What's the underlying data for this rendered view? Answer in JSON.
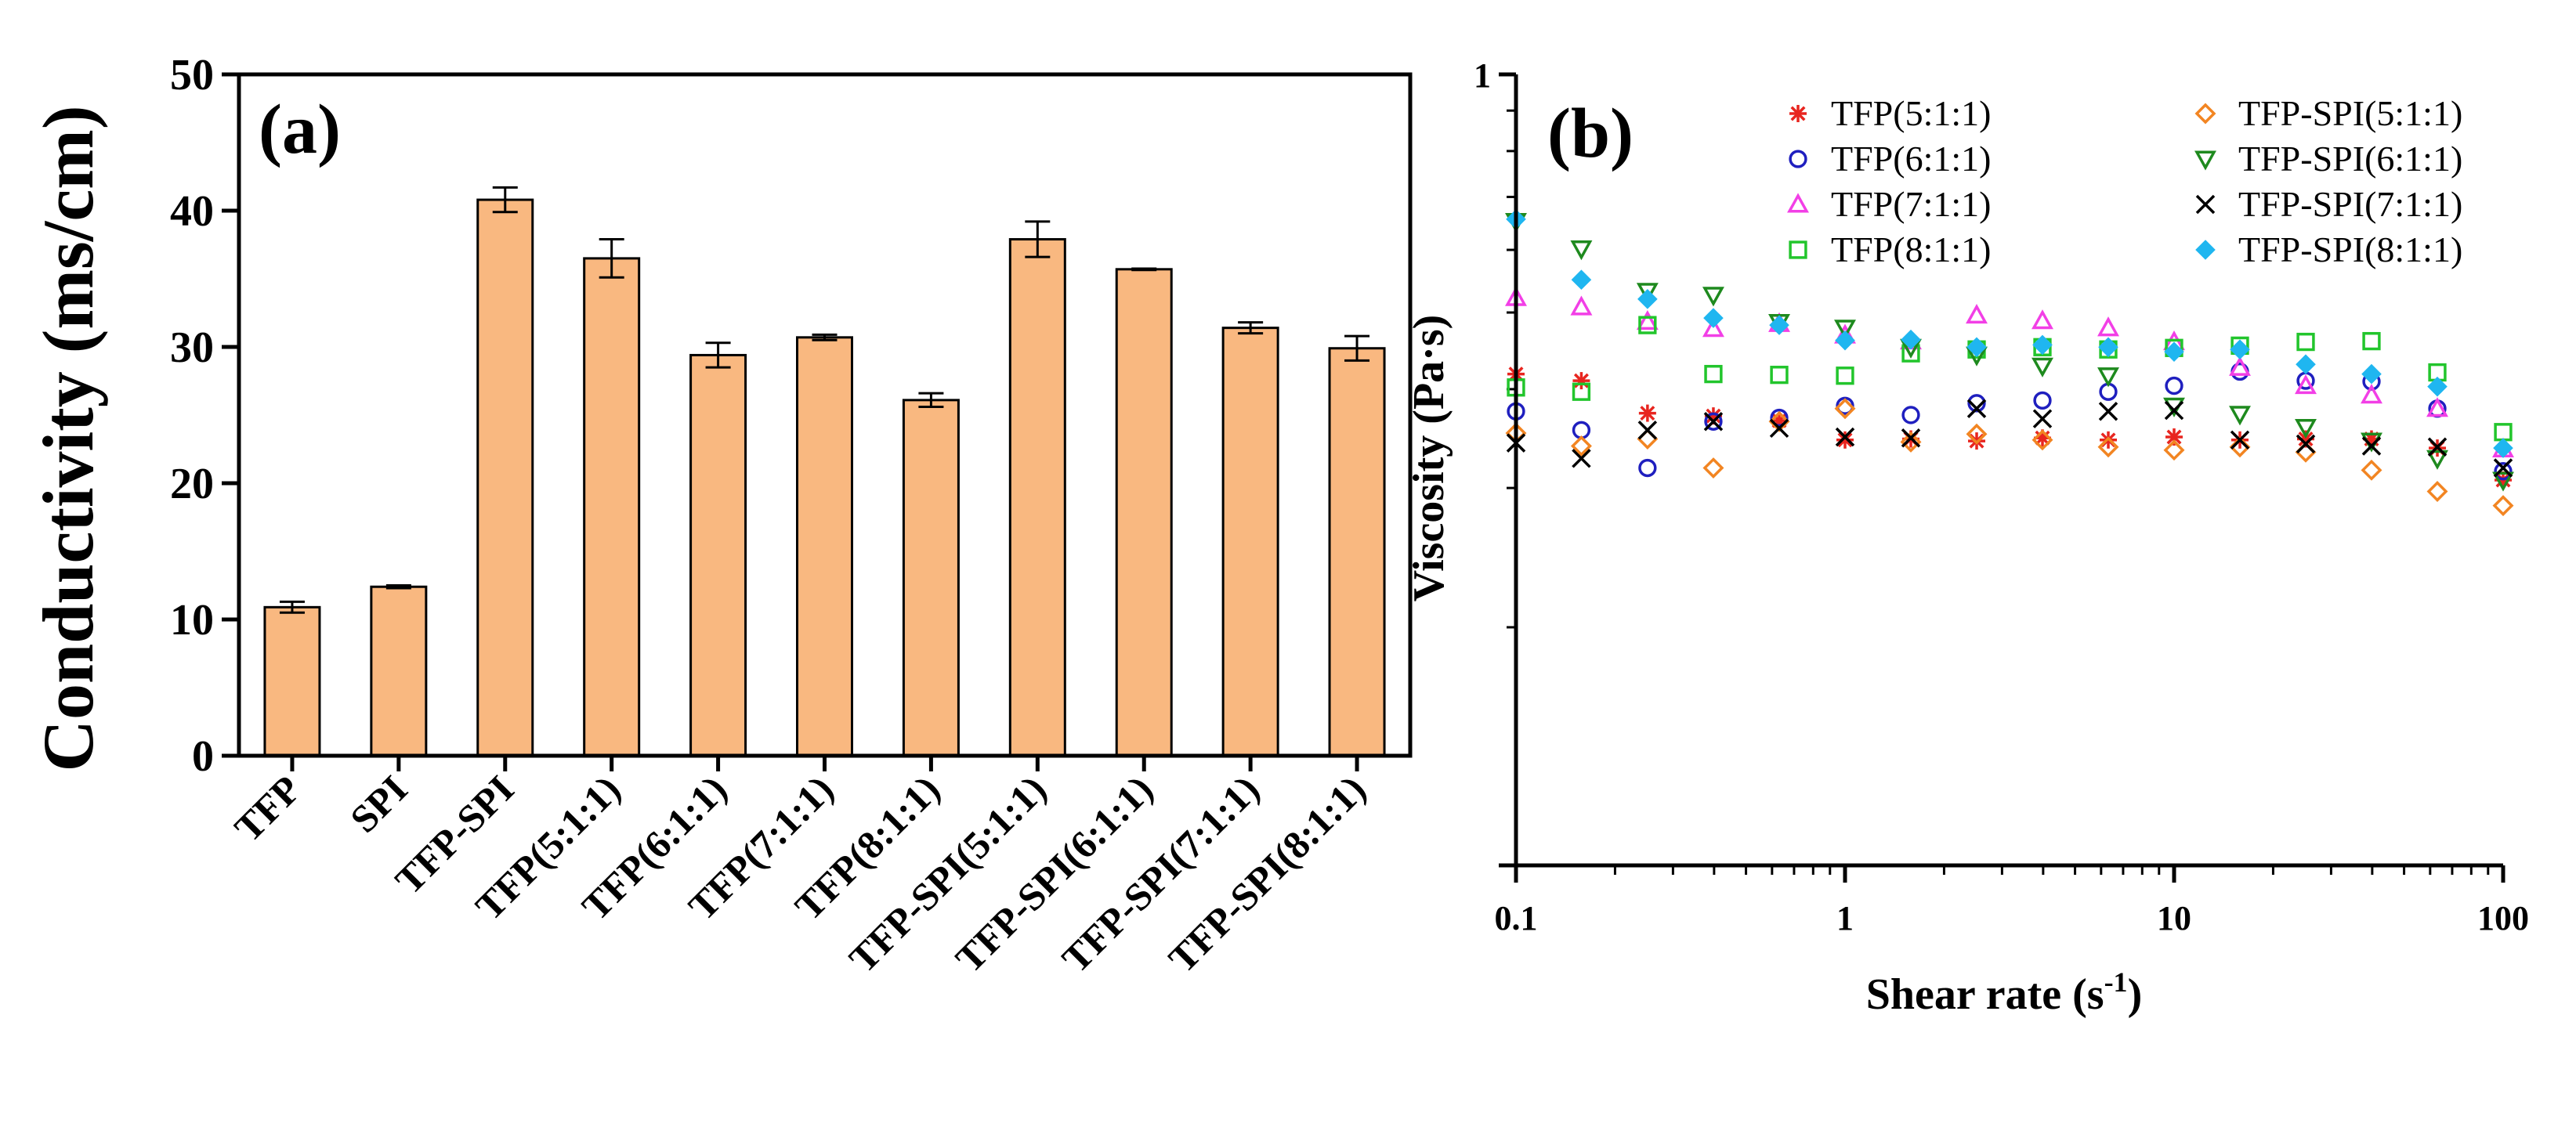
{
  "chart_data": [
    {
      "type": "bar",
      "panel_label": "(a)",
      "ylabel": "Conductivity (ms/cm)",
      "xlabel": "",
      "ylim": [
        0,
        50
      ],
      "yticks": [
        "0",
        "10",
        "20",
        "30",
        "40",
        "50"
      ],
      "categories": [
        "TFP",
        "SPI",
        "TFP-SPI",
        "TFP(5:1:1)",
        "TFP(6:1:1)",
        "TFP(7:1:1)",
        "TFP(8:1:1)",
        "TFP-SPI(5:1:1)",
        "TFP-SPI(6:1:1)",
        "TFP-SPI(7:1:1)",
        "TFP-SPI(8:1:1)"
      ],
      "values": [
        10.9,
        12.4,
        40.8,
        36.5,
        29.4,
        30.7,
        26.1,
        37.9,
        35.7,
        31.4,
        29.9
      ],
      "errors": [
        0.4,
        0.1,
        0.9,
        1.4,
        0.9,
        0.2,
        0.5,
        1.3,
        0.05,
        0.4,
        0.9
      ],
      "bar_color": "#F9B880",
      "edge_color": "#000000"
    },
    {
      "type": "scatter",
      "panel_label": "(b)",
      "xlabel_main": "Shear rate (s",
      "xlabel_sup": "-1",
      "xlabel_close": ")",
      "ylabel": "Viscosity (Pa·s)",
      "xscale": "log",
      "yscale": "log",
      "xlim": [
        0.1,
        100
      ],
      "ylim": [
        0.1,
        1
      ],
      "xticks": [
        "0.1",
        "1",
        "10",
        "100"
      ],
      "ytick_top": "1",
      "x": [
        0.1,
        0.158,
        0.251,
        0.398,
        0.631,
        1,
        1.585,
        2.512,
        3.981,
        6.31,
        10,
        15.85,
        25.12,
        39.81,
        63.1,
        100
      ],
      "series": [
        {
          "name": "TFP(5:1:1)",
          "marker": "asterisk",
          "color": "#E8251F",
          "values": [
            0.418,
            0.41,
            0.373,
            0.37,
            0.365,
            0.345,
            0.346,
            0.344,
            0.347,
            0.345,
            0.348,
            0.345,
            0.346,
            0.346,
            0.337,
            0.307
          ]
        },
        {
          "name": "TFP(6:1:1)",
          "marker": "circle",
          "color": "#1F1FBF",
          "values": [
            0.375,
            0.355,
            0.318,
            0.364,
            0.368,
            0.381,
            0.371,
            0.384,
            0.387,
            0.397,
            0.404,
            0.421,
            0.41,
            0.409,
            0.378,
            0.315
          ]
        },
        {
          "name": "TFP(7:1:1)",
          "marker": "triangle-up",
          "color": "#F23FE6",
          "values": [
            0.522,
            0.508,
            0.487,
            0.477,
            0.484,
            0.468,
            0.46,
            0.496,
            0.488,
            0.478,
            0.459,
            0.426,
            0.404,
            0.393,
            0.378,
            0.336
          ]
        },
        {
          "name": "TFP(8:1:1)",
          "marker": "square",
          "color": "#22C52C",
          "values": [
            0.402,
            0.397,
            0.482,
            0.418,
            0.417,
            0.416,
            0.444,
            0.449,
            0.452,
            0.449,
            0.451,
            0.454,
            0.459,
            0.46,
            0.42,
            0.353
          ]
        },
        {
          "name": "TFP-SPI(5:1:1)",
          "marker": "diamond-open",
          "color": "#F28522",
          "values": [
            0.352,
            0.339,
            0.346,
            0.318,
            0.364,
            0.378,
            0.343,
            0.351,
            0.345,
            0.338,
            0.335,
            0.338,
            0.333,
            0.316,
            0.297,
            0.285
          ]
        },
        {
          "name": "TFP-SPI(6:1:1)",
          "marker": "triangle-down",
          "color": "#1E8A1E",
          "values": [
            0.652,
            0.602,
            0.532,
            0.526,
            0.486,
            0.478,
            0.452,
            0.442,
            0.428,
            0.416,
            0.381,
            0.372,
            0.358,
            0.344,
            0.327,
            0.307
          ]
        },
        {
          "name": "TFP-SPI(7:1:1)",
          "marker": "cross",
          "color": "#000000",
          "values": [
            0.342,
            0.327,
            0.355,
            0.364,
            0.357,
            0.348,
            0.347,
            0.378,
            0.367,
            0.375,
            0.376,
            0.345,
            0.341,
            0.339,
            0.338,
            0.318
          ]
        },
        {
          "name": "TFP-SPI(8:1:1)",
          "marker": "diamond-filled",
          "color": "#1FB6F0",
          "values": [
            0.656,
            0.55,
            0.52,
            0.492,
            0.482,
            0.461,
            0.462,
            0.452,
            0.455,
            0.452,
            0.446,
            0.449,
            0.43,
            0.418,
            0.403,
            0.337
          ]
        }
      ]
    }
  ]
}
